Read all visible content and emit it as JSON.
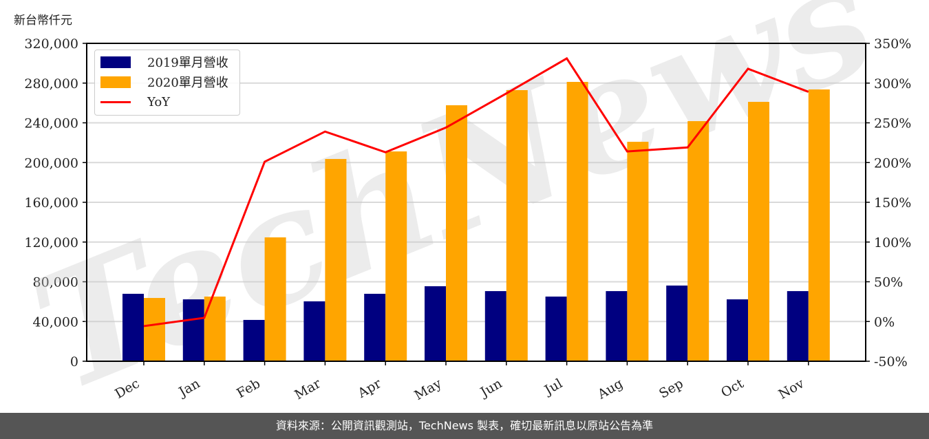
{
  "unit_label": "新台幣仟元",
  "footer": "資料來源：公開資訊觀測站，TechNews 製表，確切最新訊息以原站公告為準",
  "watermark": "TechNews",
  "colors": {
    "series2019": "#000080",
    "series2020": "#FFA500",
    "yoy": "#FF0000",
    "grid": "#d9d9d9"
  },
  "legend": [
    {
      "label": "2019單月營收",
      "type": "bar",
      "color": "#000080"
    },
    {
      "label": "2020單月營收",
      "type": "bar",
      "color": "#FFA500"
    },
    {
      "label": "YoY",
      "type": "line",
      "color": "#FF0000"
    }
  ],
  "chart_data": {
    "type": "bar",
    "title": "",
    "xlabel": "",
    "ylabel": "新台幣仟元",
    "categories": [
      "Dec",
      "Jan",
      "Feb",
      "Mar",
      "Apr",
      "May",
      "Jun",
      "Jul",
      "Aug",
      "Sep",
      "Oct",
      "Nov"
    ],
    "series": [
      {
        "name": "2019單月營收",
        "type": "bar",
        "axis": "left",
        "values": [
          67900,
          62300,
          41600,
          60300,
          67900,
          75500,
          70600,
          65100,
          70600,
          76200,
          62300,
          70600
        ]
      },
      {
        "name": "2020單月營收",
        "type": "bar",
        "axis": "left",
        "values": [
          63700,
          65100,
          124700,
          203600,
          211200,
          257700,
          272900,
          281200,
          220900,
          241700,
          261100,
          273600
        ]
      },
      {
        "name": "YoY",
        "type": "line",
        "axis": "right",
        "unit": "%",
        "values": [
          -5.8,
          4.6,
          201,
          239,
          213,
          244,
          287,
          331,
          214,
          219,
          318,
          289
        ]
      }
    ],
    "ylim": [
      0,
      320000
    ],
    "yticks": [
      "0",
      "40,000",
      "80,000",
      "120,000",
      "160,000",
      "200,000",
      "240,000",
      "280,000",
      "320,000"
    ],
    "y2lim": [
      -50,
      350
    ],
    "y2ticks": [
      "-50%",
      "0%",
      "50%",
      "100%",
      "150%",
      "200%",
      "250%",
      "300%",
      "350%"
    ],
    "grid": true,
    "legend_position": "upper left"
  }
}
